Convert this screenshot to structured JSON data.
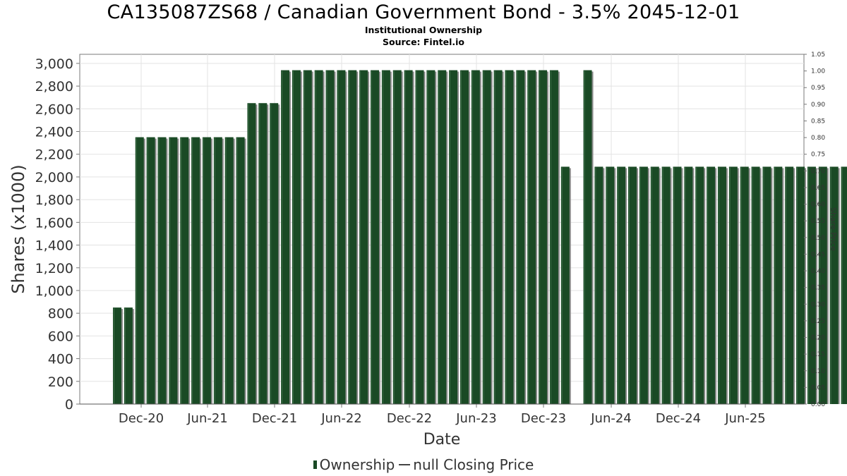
{
  "chart_data": {
    "type": "bar",
    "title": "CA135087ZS68 / Canadian Government Bond - 3.5% 2045-12-01",
    "subtitle": "Institutional Ownership",
    "source": "Source: Fintel.io",
    "xlabel": "Date",
    "ylabel": "Shares (x1000)",
    "ylabel_right": "Share Price",
    "ylim": [
      0,
      3080
    ],
    "ylim_right": [
      0,
      1.05
    ],
    "y_ticks": [
      "0",
      "200",
      "400",
      "600",
      "800",
      "1,000",
      "1,200",
      "1,400",
      "1,600",
      "1,800",
      "2,000",
      "2,200",
      "2,400",
      "2,600",
      "2,800",
      "3,000"
    ],
    "y_right_ticks": [
      "0.00",
      "0.05",
      "0.10",
      "0.15",
      "0.20",
      "0.25",
      "0.30",
      "0.35",
      "0.40",
      "0.45",
      "0.50",
      "0.55",
      "0.60",
      "0.65",
      "0.70",
      "0.75",
      "0.80",
      "0.85",
      "0.90",
      "0.95",
      "1.00",
      "1.05"
    ],
    "x_ticks": [
      "Dec-20",
      "Jun-21",
      "Dec-21",
      "Jun-22",
      "Dec-22",
      "Jun-23",
      "Dec-23",
      "Jun-24",
      "Dec-24",
      "Jun-25"
    ],
    "grid": true,
    "legend_position": "bottom",
    "series": [
      {
        "name": "Ownership",
        "color": "#1a4a25",
        "values": [
          850,
          850,
          2350,
          2350,
          2350,
          2350,
          2350,
          2350,
          2350,
          2350,
          2350,
          2350,
          2650,
          2650,
          2650,
          2940,
          2940,
          2940,
          2940,
          2940,
          2940,
          2940,
          2940,
          2940,
          2940,
          2940,
          2940,
          2940,
          2940,
          2940,
          2940,
          2940,
          2940,
          2940,
          2940,
          2940,
          2940,
          2940,
          2940,
          2940,
          2090,
          null,
          2940,
          2090,
          2090,
          2090,
          2090,
          2090,
          2090,
          2090,
          2090,
          2090,
          2090,
          2090,
          2090,
          2090,
          2090,
          2090,
          2090,
          2090,
          2090,
          2090,
          2090,
          2090,
          2090,
          2090,
          2090,
          2090,
          2090,
          2090,
          2090,
          2090,
          2090,
          2090,
          2090,
          2090,
          2090,
          2090,
          2090,
          2090,
          2090,
          2090,
          2090,
          2090
        ]
      }
    ],
    "legend": {
      "ownership_label": "Ownership",
      "price_label": "null Closing Price"
    }
  }
}
